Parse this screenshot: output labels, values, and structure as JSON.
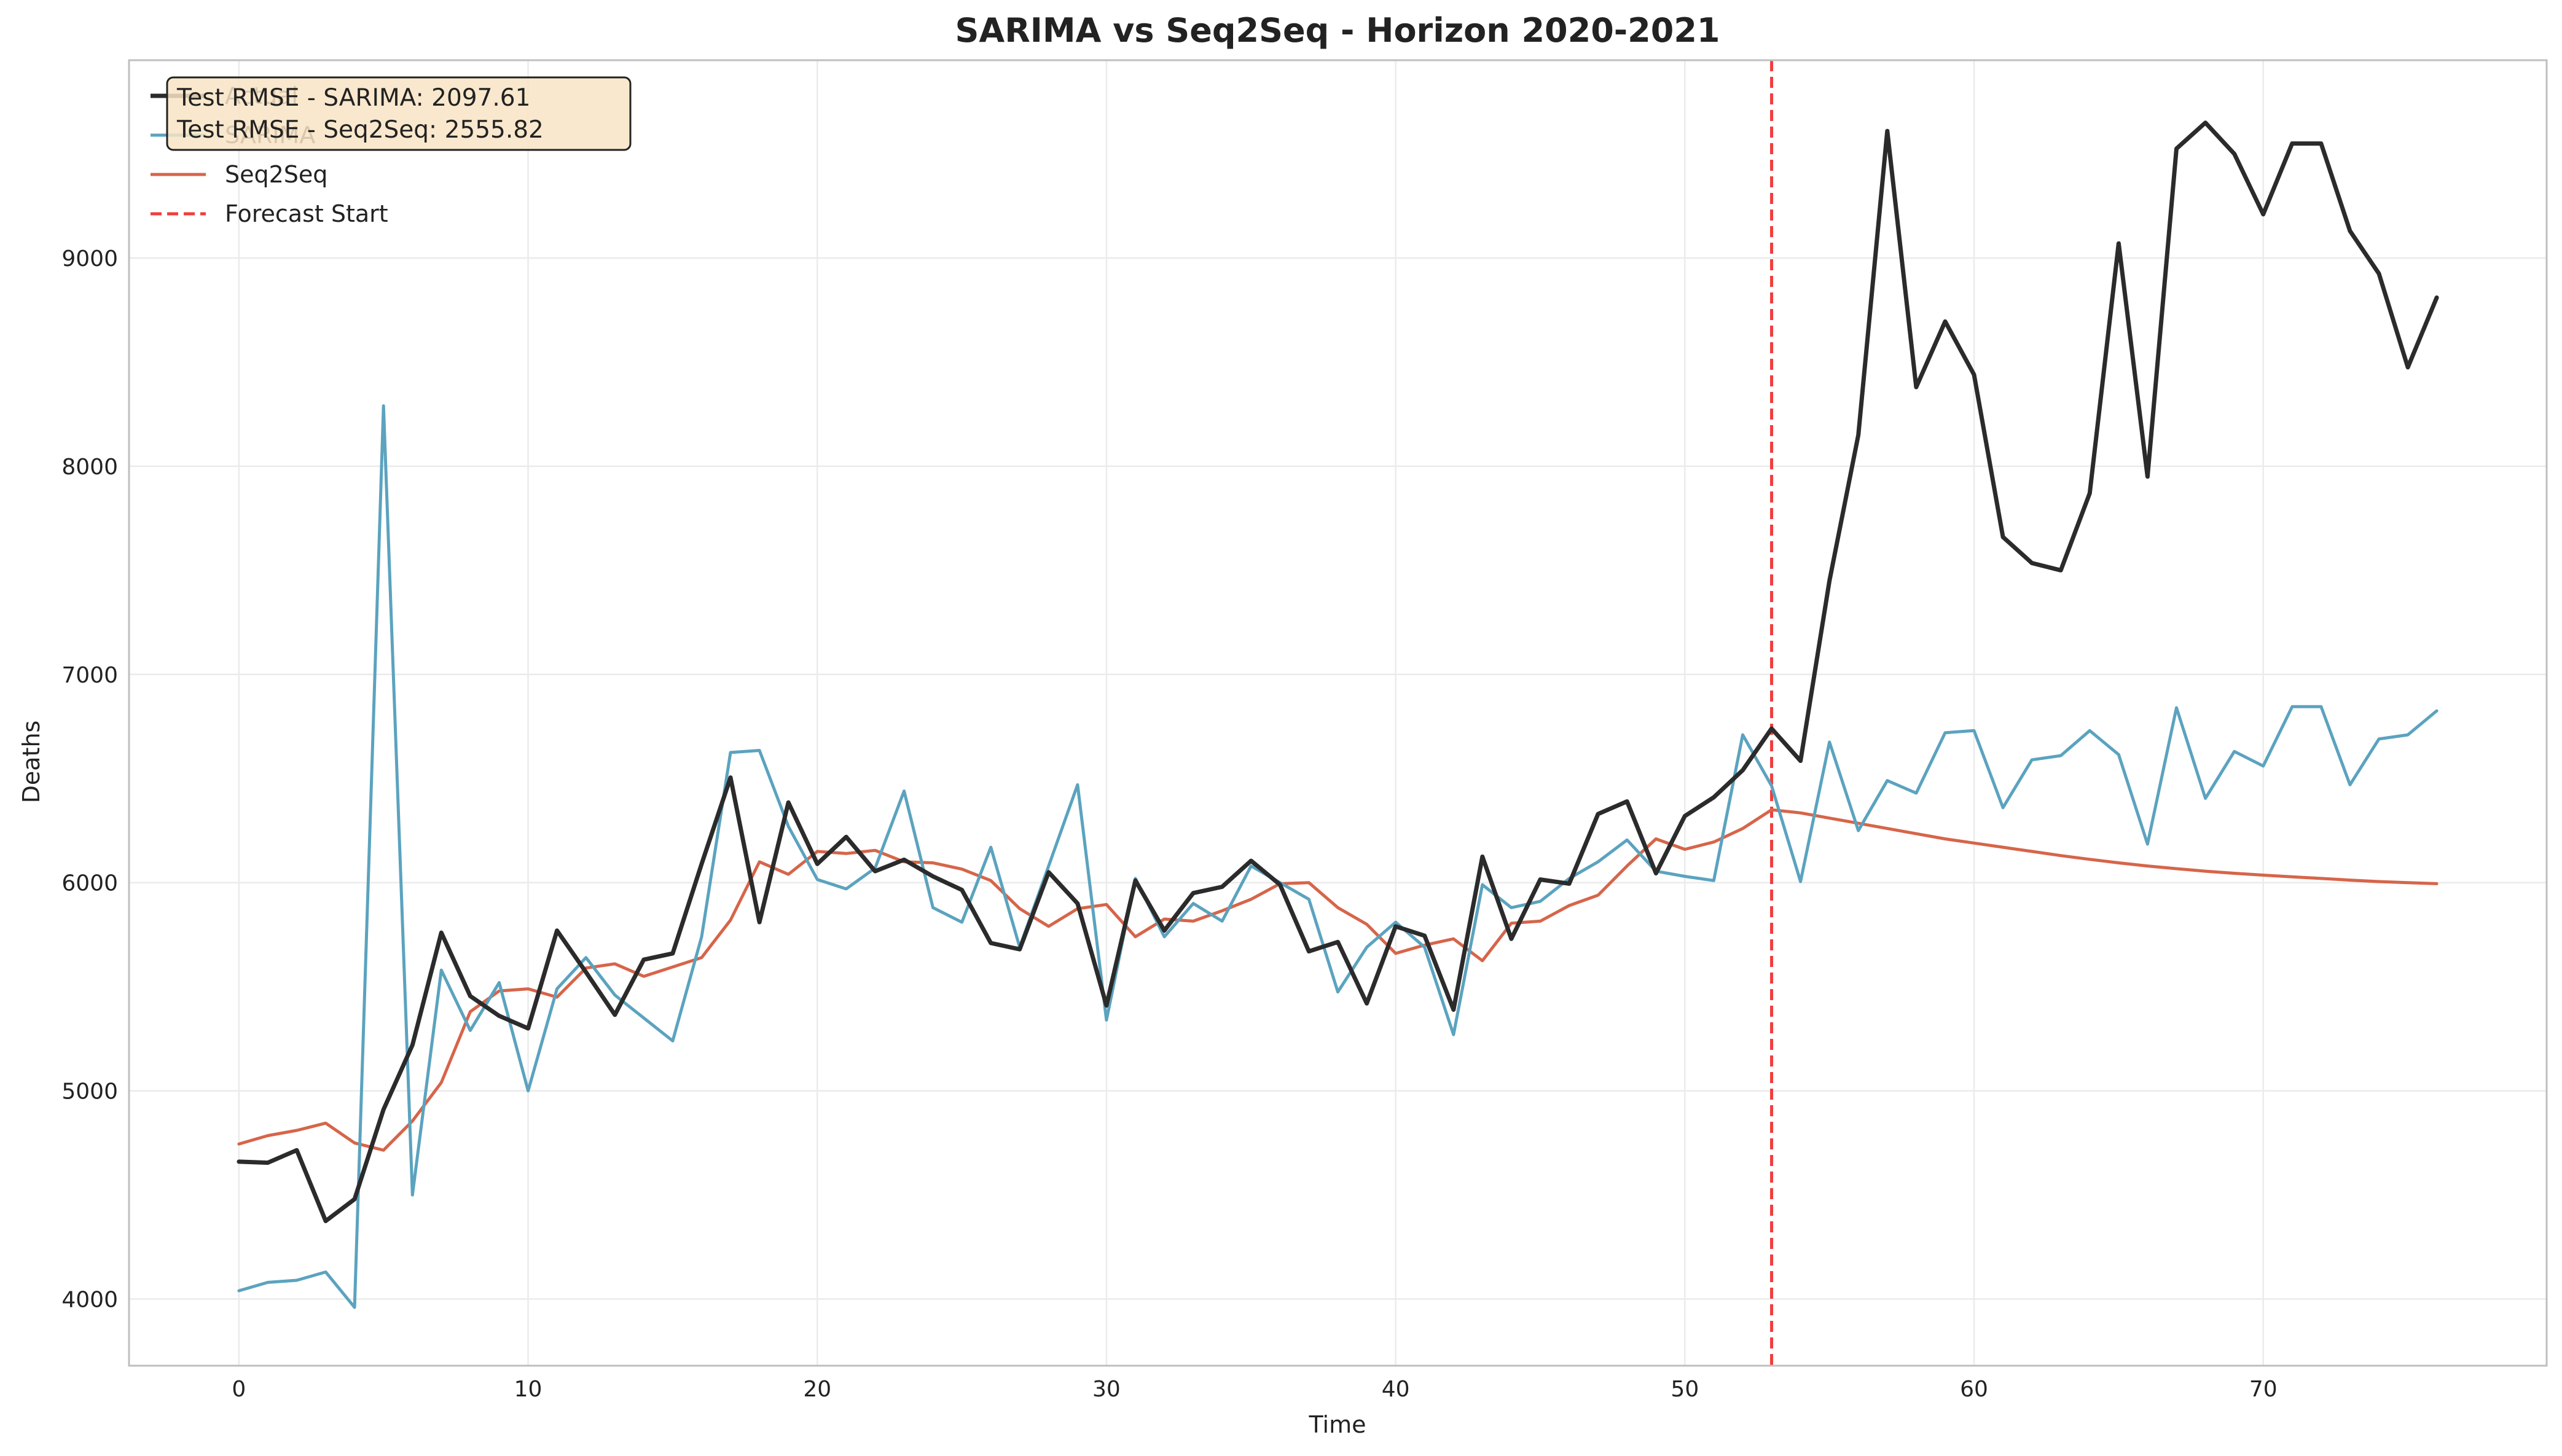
{
  "chart_data": {
    "type": "line",
    "title": "SARIMA vs Seq2Seq - Horizon 2020-2021",
    "xlabel": "Time",
    "ylabel": "Deaths",
    "xlim": [
      -3.8,
      79.8
    ],
    "ylim": [
      3680,
      9950
    ],
    "xticks": [
      0,
      10,
      20,
      30,
      40,
      50,
      60,
      70
    ],
    "yticks": [
      4000,
      5000,
      6000,
      7000,
      8000,
      9000
    ],
    "grid": true,
    "legend_position": "top-left",
    "forecast_start": 53,
    "annotation_lines": [
      "Test RMSE - SARIMA: 2097.61",
      "Test RMSE - Seq2Seq: 2555.82"
    ],
    "series": [
      {
        "name": "Actual",
        "color": "#2b2b2b",
        "values": [
          4660,
          4655,
          4715,
          4375,
          4480,
          4910,
          5220,
          5760,
          5455,
          5360,
          5300,
          5770,
          5570,
          5365,
          5630,
          5660,
          6090,
          6505,
          5810,
          6385,
          6090,
          6220,
          6055,
          6110,
          6030,
          5965,
          5710,
          5680,
          6050,
          5900,
          5410,
          6010,
          5770,
          5950,
          5980,
          6105,
          5990,
          5670,
          5715,
          5420,
          5790,
          5745,
          5390,
          6125,
          5730,
          6015,
          5995,
          6330,
          6390,
          6045,
          6320,
          6410,
          6540,
          6740,
          6585,
          7450,
          8150,
          9610,
          8380,
          8695,
          8440,
          7660,
          7535,
          7500,
          7870,
          9070,
          7950,
          9525,
          9650,
          9500,
          9210,
          9550,
          9550,
          9130,
          8925,
          8475,
          8810
        ]
      },
      {
        "name": "SARIMA",
        "color": "#5ba3bf",
        "values": [
          4040,
          4080,
          4090,
          4130,
          3960,
          8290,
          4500,
          5580,
          5290,
          5520,
          5000,
          5490,
          5640,
          5460,
          5350,
          5240,
          5740,
          6625,
          6635,
          6270,
          6015,
          5970,
          6070,
          6440,
          5880,
          5810,
          6170,
          5690,
          6080,
          6470,
          5340,
          6020,
          5740,
          5900,
          5815,
          6080,
          6000,
          5920,
          5475,
          5690,
          5810,
          5690,
          5270,
          5990,
          5880,
          5910,
          6020,
          6100,
          6205,
          6055,
          6030,
          6010,
          6710,
          6465,
          6005,
          6675,
          6250,
          6490,
          6430,
          6720,
          6730,
          6360,
          6590,
          6610,
          6730,
          6615,
          6185,
          6840,
          6405,
          6630,
          6560,
          6845,
          6845,
          6470,
          6690,
          6710,
          6825
        ]
      },
      {
        "name": "Seq2Seq",
        "color": "#d6654a",
        "values": [
          4745,
          4785,
          4810,
          4845,
          4750,
          4715,
          4855,
          5040,
          5380,
          5480,
          5490,
          5450,
          5590,
          5610,
          5550,
          5595,
          5640,
          5820,
          6100,
          6040,
          6150,
          6140,
          6155,
          6100,
          6095,
          6065,
          6010,
          5875,
          5790,
          5875,
          5895,
          5740,
          5825,
          5815,
          5865,
          5920,
          5995,
          6000,
          5880,
          5800,
          5660,
          5700,
          5730,
          5625,
          5805,
          5815,
          5890,
          5940,
          6080,
          6210,
          6160,
          6195,
          6260,
          6350,
          6335,
          6310,
          6285,
          6260,
          6235,
          6210,
          6190,
          6170,
          6150,
          6130,
          6112,
          6095,
          6080,
          6067,
          6055,
          6045,
          6036,
          6028,
          6020,
          6012,
          6005,
          6000,
          5995
        ]
      }
    ],
    "forecast_line": {
      "name": "Forecast Start",
      "color": "#f23d3d"
    },
    "annotation_box": {
      "fill": "#f8e4c4",
      "border": "#222222"
    },
    "frame_color": "#bfbfbf",
    "grid_color": "#ebebeb"
  }
}
